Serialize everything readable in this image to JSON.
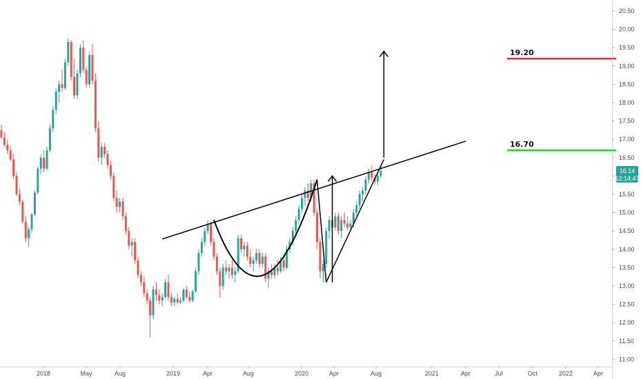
{
  "chart_data": {
    "type": "candlestick",
    "x_tick_labels": [
      "2018",
      "May",
      "Aug",
      "2019",
      "Apr",
      "Aug",
      "2020",
      "Apr",
      "Aug",
      "2021",
      "Apr",
      "Jul",
      "Oct",
      "2022",
      "Apr"
    ],
    "y_tick_labels": [
      "20.50",
      "20.00",
      "19.50",
      "19.00",
      "18.50",
      "18.00",
      "17.50",
      "17.00",
      "16.50",
      "16.00",
      "15.50",
      "15.00",
      "14.50",
      "14.00",
      "13.50",
      "13.00",
      "12.50",
      "12.00",
      "11.50",
      "11.00"
    ],
    "ylim": [
      10.8,
      20.8
    ],
    "grid": false,
    "colors": {
      "up": "#26a69a",
      "down": "#ef5350",
      "target_high": "#d32f2f",
      "target_low": "#00e600",
      "pattern": "#000000"
    },
    "price_levels": [
      {
        "label": "19.20",
        "value": 19.2,
        "color": "#d32f2f"
      },
      {
        "label": "16.70",
        "value": 16.7,
        "color": "#00e600"
      }
    ],
    "current_price": {
      "label": "16.14",
      "value": 16.14,
      "countdown": "12:14:47",
      "color": "#26a69a"
    },
    "candles": [
      [
        17.25,
        17.4,
        17.0,
        17.05
      ],
      [
        17.05,
        17.2,
        16.8,
        16.85
      ],
      [
        16.85,
        17.0,
        16.6,
        16.7
      ],
      [
        16.7,
        16.8,
        16.4,
        16.45
      ],
      [
        16.45,
        16.6,
        15.9,
        16.0
      ],
      [
        16.0,
        16.1,
        15.45,
        15.5
      ],
      [
        15.5,
        15.65,
        15.2,
        15.3
      ],
      [
        15.3,
        15.35,
        14.7,
        14.75
      ],
      [
        14.75,
        14.9,
        14.2,
        14.3
      ],
      [
        14.3,
        14.6,
        14.05,
        14.55
      ],
      [
        14.55,
        15.0,
        14.45,
        14.95
      ],
      [
        14.95,
        15.6,
        14.9,
        15.55
      ],
      [
        15.55,
        16.25,
        15.5,
        16.2
      ],
      [
        16.2,
        16.6,
        16.05,
        16.5
      ],
      [
        16.5,
        16.7,
        16.1,
        16.2
      ],
      [
        16.2,
        16.8,
        16.15,
        16.7
      ],
      [
        16.7,
        17.4,
        16.65,
        17.3
      ],
      [
        17.3,
        17.9,
        17.2,
        17.8
      ],
      [
        17.8,
        18.4,
        17.7,
        18.3
      ],
      [
        18.3,
        18.6,
        18.0,
        18.5
      ],
      [
        18.5,
        18.9,
        18.3,
        18.4
      ],
      [
        18.4,
        19.2,
        18.35,
        19.1
      ],
      [
        19.1,
        19.75,
        19.0,
        19.65
      ],
      [
        19.65,
        19.7,
        18.6,
        18.7
      ],
      [
        18.7,
        19.2,
        18.1,
        18.2
      ],
      [
        18.2,
        18.9,
        18.1,
        18.8
      ],
      [
        18.8,
        19.6,
        18.7,
        19.5
      ],
      [
        19.5,
        19.7,
        18.8,
        18.9
      ],
      [
        18.9,
        19.0,
        18.4,
        18.5
      ],
      [
        18.5,
        19.4,
        18.4,
        19.3
      ],
      [
        19.3,
        19.6,
        18.5,
        18.6
      ],
      [
        18.6,
        18.8,
        17.2,
        17.3
      ],
      [
        17.3,
        17.5,
        16.4,
        16.5
      ],
      [
        16.5,
        16.9,
        16.3,
        16.8
      ],
      [
        16.8,
        16.9,
        16.5,
        16.6
      ],
      [
        16.6,
        16.7,
        16.2,
        16.3
      ],
      [
        16.3,
        16.4,
        15.9,
        16.0
      ],
      [
        16.0,
        16.1,
        15.3,
        15.4
      ],
      [
        15.4,
        15.6,
        15.0,
        15.15
      ],
      [
        15.15,
        15.4,
        15.0,
        15.3
      ],
      [
        15.3,
        15.4,
        14.8,
        14.9
      ],
      [
        14.9,
        15.0,
        14.4,
        14.5
      ],
      [
        14.5,
        14.6,
        14.0,
        14.1
      ],
      [
        14.1,
        14.3,
        13.8,
        14.2
      ],
      [
        14.2,
        14.3,
        13.6,
        13.7
      ],
      [
        13.7,
        13.8,
        13.2,
        13.3
      ],
      [
        13.3,
        13.4,
        13.0,
        13.1
      ],
      [
        13.1,
        13.25,
        12.7,
        12.8
      ],
      [
        12.8,
        12.9,
        12.5,
        12.6
      ],
      [
        12.6,
        12.7,
        11.6,
        12.2
      ],
      [
        12.2,
        13.0,
        12.1,
        12.9
      ],
      [
        12.9,
        13.1,
        12.6,
        12.75
      ],
      [
        12.75,
        12.9,
        12.5,
        12.6
      ],
      [
        12.6,
        12.8,
        12.45,
        12.7
      ],
      [
        12.7,
        13.2,
        12.65,
        13.1
      ],
      [
        13.1,
        13.3,
        12.6,
        12.7
      ],
      [
        12.7,
        12.8,
        12.45,
        12.55
      ],
      [
        12.55,
        12.7,
        12.45,
        12.65
      ],
      [
        12.65,
        12.8,
        12.5,
        12.55
      ],
      [
        12.55,
        12.7,
        12.5,
        12.6
      ],
      [
        12.6,
        12.95,
        12.55,
        12.9
      ],
      [
        12.9,
        13.0,
        12.65,
        12.7
      ],
      [
        12.7,
        12.85,
        12.55,
        12.6
      ],
      [
        12.6,
        12.9,
        12.55,
        12.85
      ],
      [
        12.85,
        13.5,
        12.8,
        13.4
      ],
      [
        13.4,
        14.0,
        13.3,
        13.9
      ],
      [
        13.9,
        14.3,
        13.8,
        14.2
      ],
      [
        14.2,
        14.6,
        14.1,
        14.5
      ],
      [
        14.5,
        14.8,
        14.4,
        14.7
      ],
      [
        14.7,
        14.75,
        14.1,
        14.2
      ],
      [
        14.2,
        14.3,
        13.7,
        13.8
      ],
      [
        13.8,
        13.9,
        13.3,
        13.4
      ],
      [
        13.4,
        13.5,
        12.7,
        13.0
      ],
      [
        13.0,
        13.6,
        12.9,
        13.5
      ],
      [
        13.5,
        13.7,
        13.3,
        13.4
      ],
      [
        13.4,
        13.6,
        13.2,
        13.5
      ],
      [
        13.5,
        13.7,
        13.2,
        13.3
      ],
      [
        13.3,
        13.5,
        13.1,
        13.4
      ],
      [
        13.4,
        14.4,
        13.35,
        14.3
      ],
      [
        14.3,
        14.4,
        13.9,
        14.0
      ],
      [
        14.0,
        14.2,
        13.8,
        14.1
      ],
      [
        14.1,
        14.2,
        13.7,
        13.8
      ],
      [
        13.8,
        14.0,
        13.5,
        13.6
      ],
      [
        13.6,
        13.8,
        13.4,
        13.7
      ],
      [
        13.7,
        14.0,
        13.6,
        13.9
      ],
      [
        13.9,
        14.0,
        13.5,
        13.6
      ],
      [
        13.6,
        13.9,
        13.5,
        13.8
      ],
      [
        13.8,
        13.9,
        13.1,
        13.2
      ],
      [
        13.2,
        13.5,
        12.95,
        13.4
      ],
      [
        13.4,
        13.6,
        13.2,
        13.3
      ],
      [
        13.3,
        13.6,
        13.2,
        13.5
      ],
      [
        13.5,
        13.7,
        13.3,
        13.4
      ],
      [
        13.4,
        13.8,
        13.35,
        13.7
      ],
      [
        13.7,
        13.8,
        13.4,
        13.5
      ],
      [
        13.5,
        14.1,
        13.45,
        14.0
      ],
      [
        14.0,
        14.3,
        13.9,
        14.2
      ],
      [
        14.2,
        14.6,
        14.1,
        14.5
      ],
      [
        14.5,
        14.9,
        14.4,
        14.8
      ],
      [
        14.8,
        15.2,
        14.7,
        15.1
      ],
      [
        15.1,
        15.5,
        15.0,
        15.4
      ],
      [
        15.4,
        15.7,
        15.2,
        15.6
      ],
      [
        15.6,
        15.8,
        15.3,
        15.4
      ],
      [
        15.4,
        15.9,
        15.3,
        15.8
      ],
      [
        15.8,
        15.9,
        14.9,
        15.0
      ],
      [
        15.0,
        15.1,
        14.0,
        14.2
      ],
      [
        14.2,
        14.3,
        13.2,
        13.4
      ],
      [
        13.4,
        13.7,
        13.1,
        13.6
      ],
      [
        13.6,
        14.6,
        13.5,
        14.5
      ],
      [
        14.5,
        14.9,
        14.3,
        14.8
      ],
      [
        14.8,
        14.9,
        14.5,
        14.6
      ],
      [
        14.6,
        15.0,
        14.5,
        14.9
      ],
      [
        14.9,
        15.0,
        14.4,
        14.5
      ],
      [
        14.5,
        14.9,
        14.3,
        14.8
      ],
      [
        14.8,
        15.0,
        14.6,
        14.7
      ],
      [
        14.7,
        14.9,
        14.5,
        14.6
      ],
      [
        14.6,
        14.8,
        14.5,
        14.7
      ],
      [
        14.7,
        15.1,
        14.6,
        15.0
      ],
      [
        15.0,
        15.3,
        14.9,
        15.2
      ],
      [
        15.2,
        15.6,
        15.1,
        15.5
      ],
      [
        15.5,
        15.7,
        15.3,
        15.6
      ],
      [
        15.6,
        16.0,
        15.5,
        15.9
      ],
      [
        15.9,
        16.2,
        15.8,
        16.1
      ],
      [
        16.1,
        16.3,
        15.85,
        15.95
      ],
      [
        15.95,
        16.05,
        15.75,
        15.85
      ],
      [
        15.85,
        16.1,
        15.75,
        16.0
      ],
      [
        16.0,
        16.25,
        15.95,
        16.14
      ]
    ],
    "annotations": [
      {
        "kind": "line",
        "from": [
          53,
          14.28
        ],
        "to": [
          153,
          16.95
        ]
      },
      {
        "kind": "arc",
        "from": [
          70,
          14.8
        ],
        "to": [
          104,
          15.9
        ],
        "control": [
          86,
          11.25
        ]
      },
      {
        "kind": "line",
        "from": [
          104,
          15.9
        ],
        "to": [
          107,
          13.1
        ]
      },
      {
        "kind": "line",
        "from": [
          107,
          13.1
        ],
        "to": [
          126,
          16.45
        ]
      },
      {
        "kind": "arrow",
        "from": [
          109,
          13.1
        ],
        "to": [
          109,
          16.0
        ]
      },
      {
        "kind": "arrow",
        "from": [
          126,
          16.5
        ],
        "to": [
          126,
          19.4
        ]
      }
    ]
  }
}
